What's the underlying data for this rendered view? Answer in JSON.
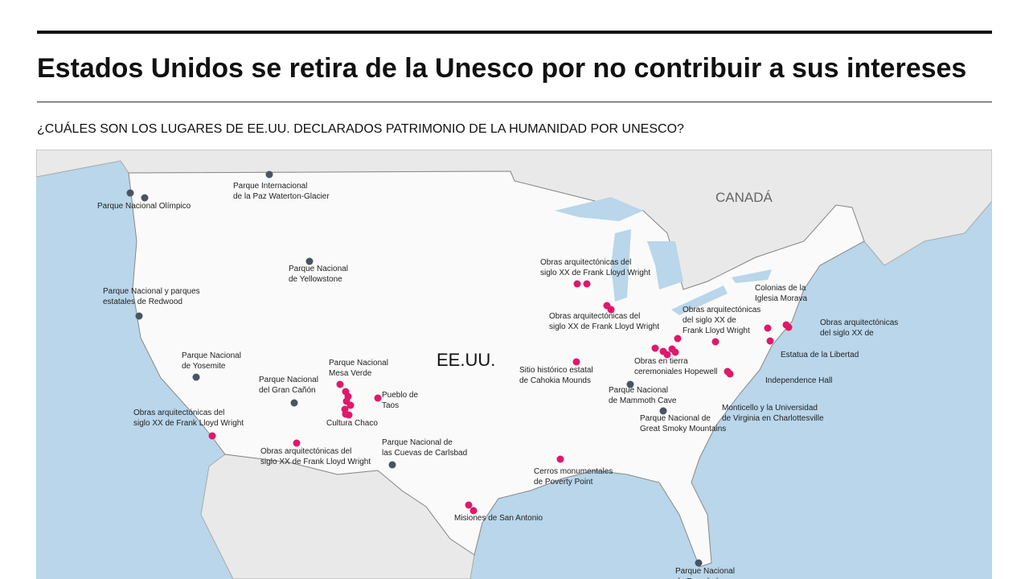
{
  "header": {
    "title": "Estados Unidos se retira de la Unesco por no contribuir a sus intereses",
    "subtitle": "¿CUÁLES SON LOS LUGARES DE EE.UU. DECLARADOS PATRIMONIO DE LA HUMANIDAD POR UNESCO?"
  },
  "map": {
    "country_labels": [
      "CANADÁ",
      "EE.UU."
    ],
    "sites": [
      {
        "label": [
          "Parque Nacional Olímpico"
        ]
      },
      {
        "label": [
          "Parque Internacional",
          "de la Paz Waterton-Glacier"
        ]
      },
      {
        "label": [
          "Parque Nacional",
          "de Yellowstone"
        ]
      },
      {
        "label": [
          "Parque Nacional y parques",
          "estatales de Redwood"
        ]
      },
      {
        "label": [
          "Parque Nacional",
          "de Yosemite"
        ]
      },
      {
        "label": [
          "Parque Nacional",
          "del Gran Cañón"
        ]
      },
      {
        "label": [
          "Parque Nacional",
          "Mesa Verde"
        ]
      },
      {
        "label": [
          "Cultura Chaco"
        ]
      },
      {
        "label": [
          "Pueblo de",
          "Taos"
        ]
      },
      {
        "label": [
          "Obras arquitectónicas del",
          "siglo XX de Frank Lloyd Wright"
        ]
      },
      {
        "label": [
          "Obras arquitectónicas del",
          "siglo XX de Frank Lloyd Wright"
        ]
      },
      {
        "label": [
          "Parque Nacional de",
          "las Cuevas de Carlsbad"
        ]
      },
      {
        "label": [
          "Misiones de San Antonio"
        ]
      },
      {
        "label": [
          "Cerros monumentales",
          "de Poverty Point"
        ]
      },
      {
        "label": [
          "Sitio histórico estatal",
          "de Cahokia Mounds"
        ]
      },
      {
        "label": [
          "Obras arquitectónicas del",
          "siglo XX de Frank Lloyd Wright"
        ]
      },
      {
        "label": [
          "Obras arquitectónicas del",
          "siglo XX de Frank Lloyd Wright"
        ]
      },
      {
        "label": [
          "Parque Nacional",
          "de Mammoth Cave"
        ]
      },
      {
        "label": [
          "Parque Nacional de",
          "Great Smoky Mountains"
        ]
      },
      {
        "label": [
          "Obras en tierra",
          "ceremoniales Hopewell"
        ]
      },
      {
        "label": [
          "Obras arquitectónicas",
          "del siglo XX de",
          "Frank Lloyd Wright"
        ]
      },
      {
        "label": [
          "Colonias de la",
          "Iglesia Morava"
        ]
      },
      {
        "label": [
          "Obras arquitectónicas",
          "del siglo XX de"
        ]
      },
      {
        "label": [
          "Estatua de la Libertad"
        ]
      },
      {
        "label": [
          "Independence Hall"
        ]
      },
      {
        "label": [
          "Monticello y la Universidad",
          "de Virginia en Charlottesville"
        ]
      },
      {
        "label": [
          "Parque Nacional",
          "de Everglades"
        ]
      }
    ]
  }
}
